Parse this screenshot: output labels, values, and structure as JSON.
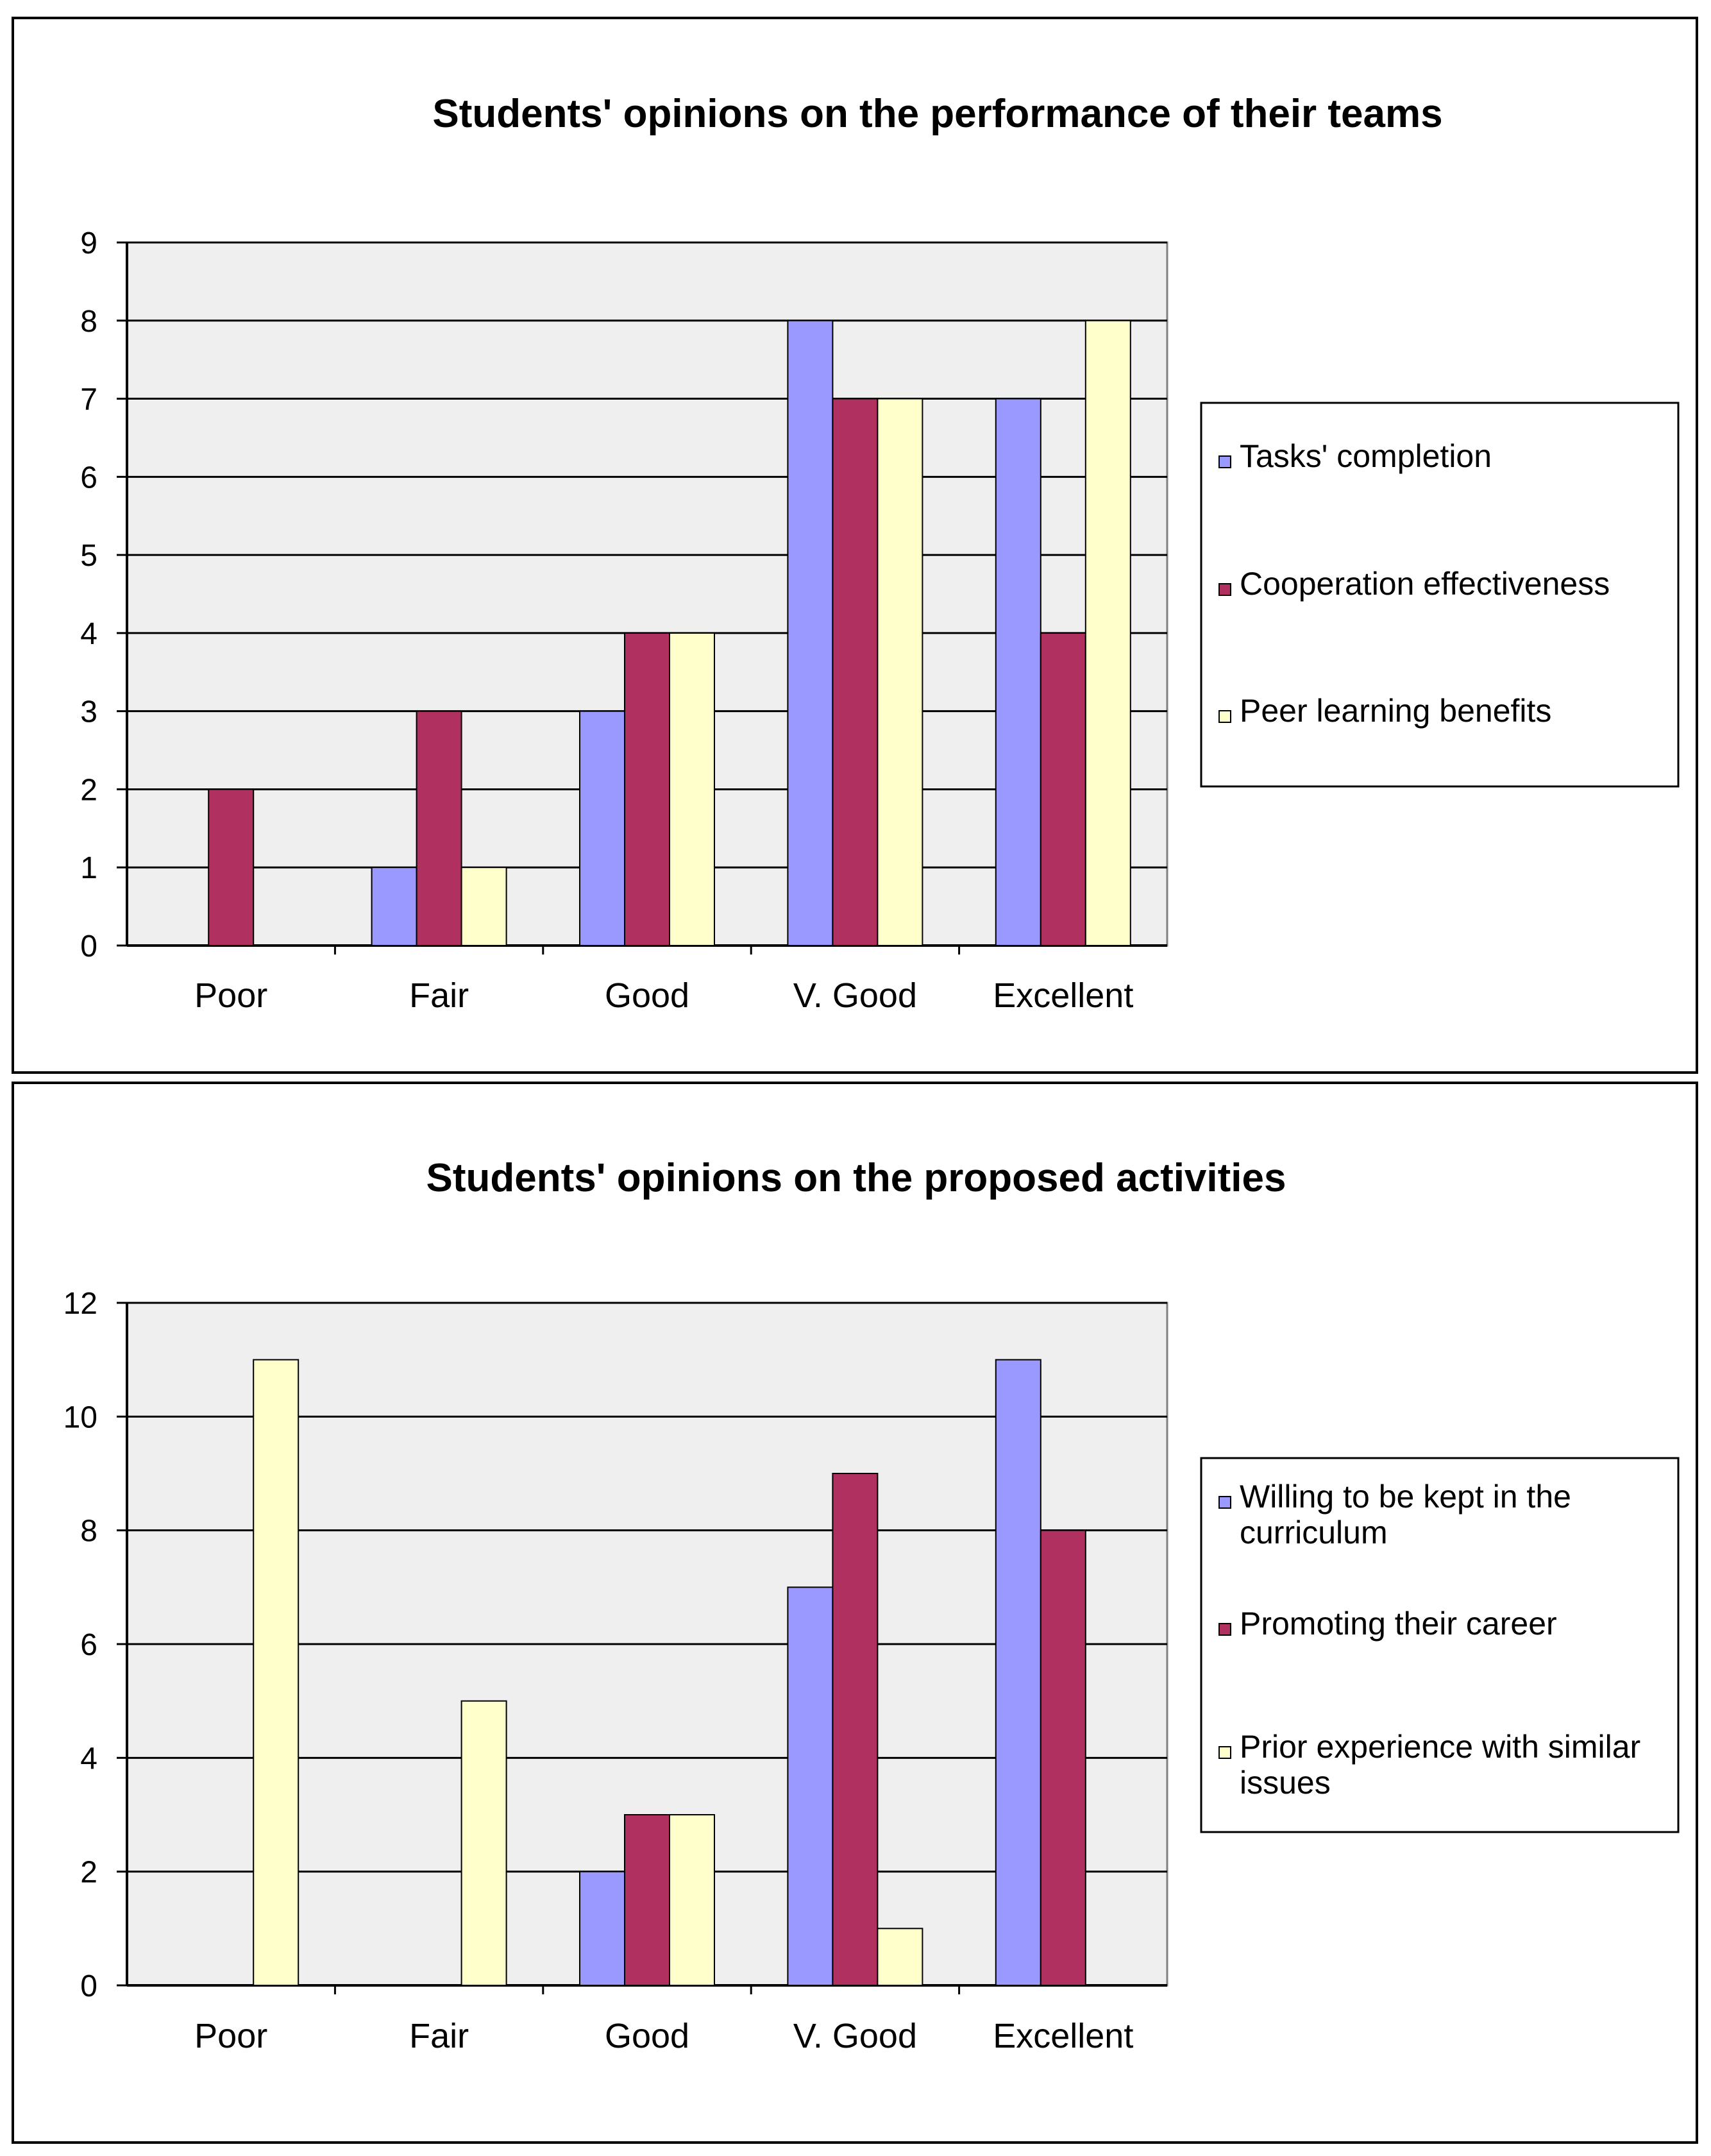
{
  "colors": {
    "series_1": "#9999ff",
    "series_2": "#b03060",
    "series_3": "#ffffcc",
    "plot_background": "#efefef",
    "frame": "#000000"
  },
  "chart_data": [
    {
      "type": "bar",
      "title": "Students' opinions on the performance of their teams",
      "categories": [
        "Poor",
        "Fair",
        "Good",
        "V. Good",
        "Excellent"
      ],
      "series": [
        {
          "name": "Tasks' completion",
          "values": [
            0,
            1,
            3,
            8,
            7
          ]
        },
        {
          "name": "Cooperation effectiveness",
          "values": [
            2,
            3,
            4,
            7,
            4
          ]
        },
        {
          "name": "Peer learning benefits",
          "values": [
            0,
            1,
            4,
            7,
            8
          ]
        }
      ],
      "ylim": [
        0,
        9
      ],
      "yticks": [
        "0",
        "1",
        "2",
        "3",
        "4",
        "5",
        "6",
        "7",
        "8",
        "9"
      ],
      "xlabel": "",
      "ylabel": "",
      "grid": true,
      "legend": "right"
    },
    {
      "type": "bar",
      "title": "Students' opinions on the proposed activities",
      "categories": [
        "Poor",
        "Fair",
        "Good",
        "V. Good",
        "Excellent"
      ],
      "series": [
        {
          "name": "Willing to be kept in the curriculum",
          "legend_lines": [
            "Willing to be kept in the",
            "curriculum"
          ],
          "values": [
            0,
            0,
            2,
            7,
            11
          ]
        },
        {
          "name": "Promoting their career",
          "legend_lines": [
            "Promoting their career"
          ],
          "values": [
            0,
            0,
            3,
            9,
            8
          ]
        },
        {
          "name": "Prior experience with similar issues",
          "legend_lines": [
            "Prior experience with similar",
            "issues"
          ],
          "values": [
            11,
            5,
            3,
            1,
            0
          ]
        }
      ],
      "ylim": [
        0,
        12
      ],
      "yticks": [
        "0",
        "2",
        "4",
        "6",
        "8",
        "10",
        "12"
      ],
      "xlabel": "",
      "ylabel": "",
      "grid": true,
      "legend": "right"
    }
  ]
}
